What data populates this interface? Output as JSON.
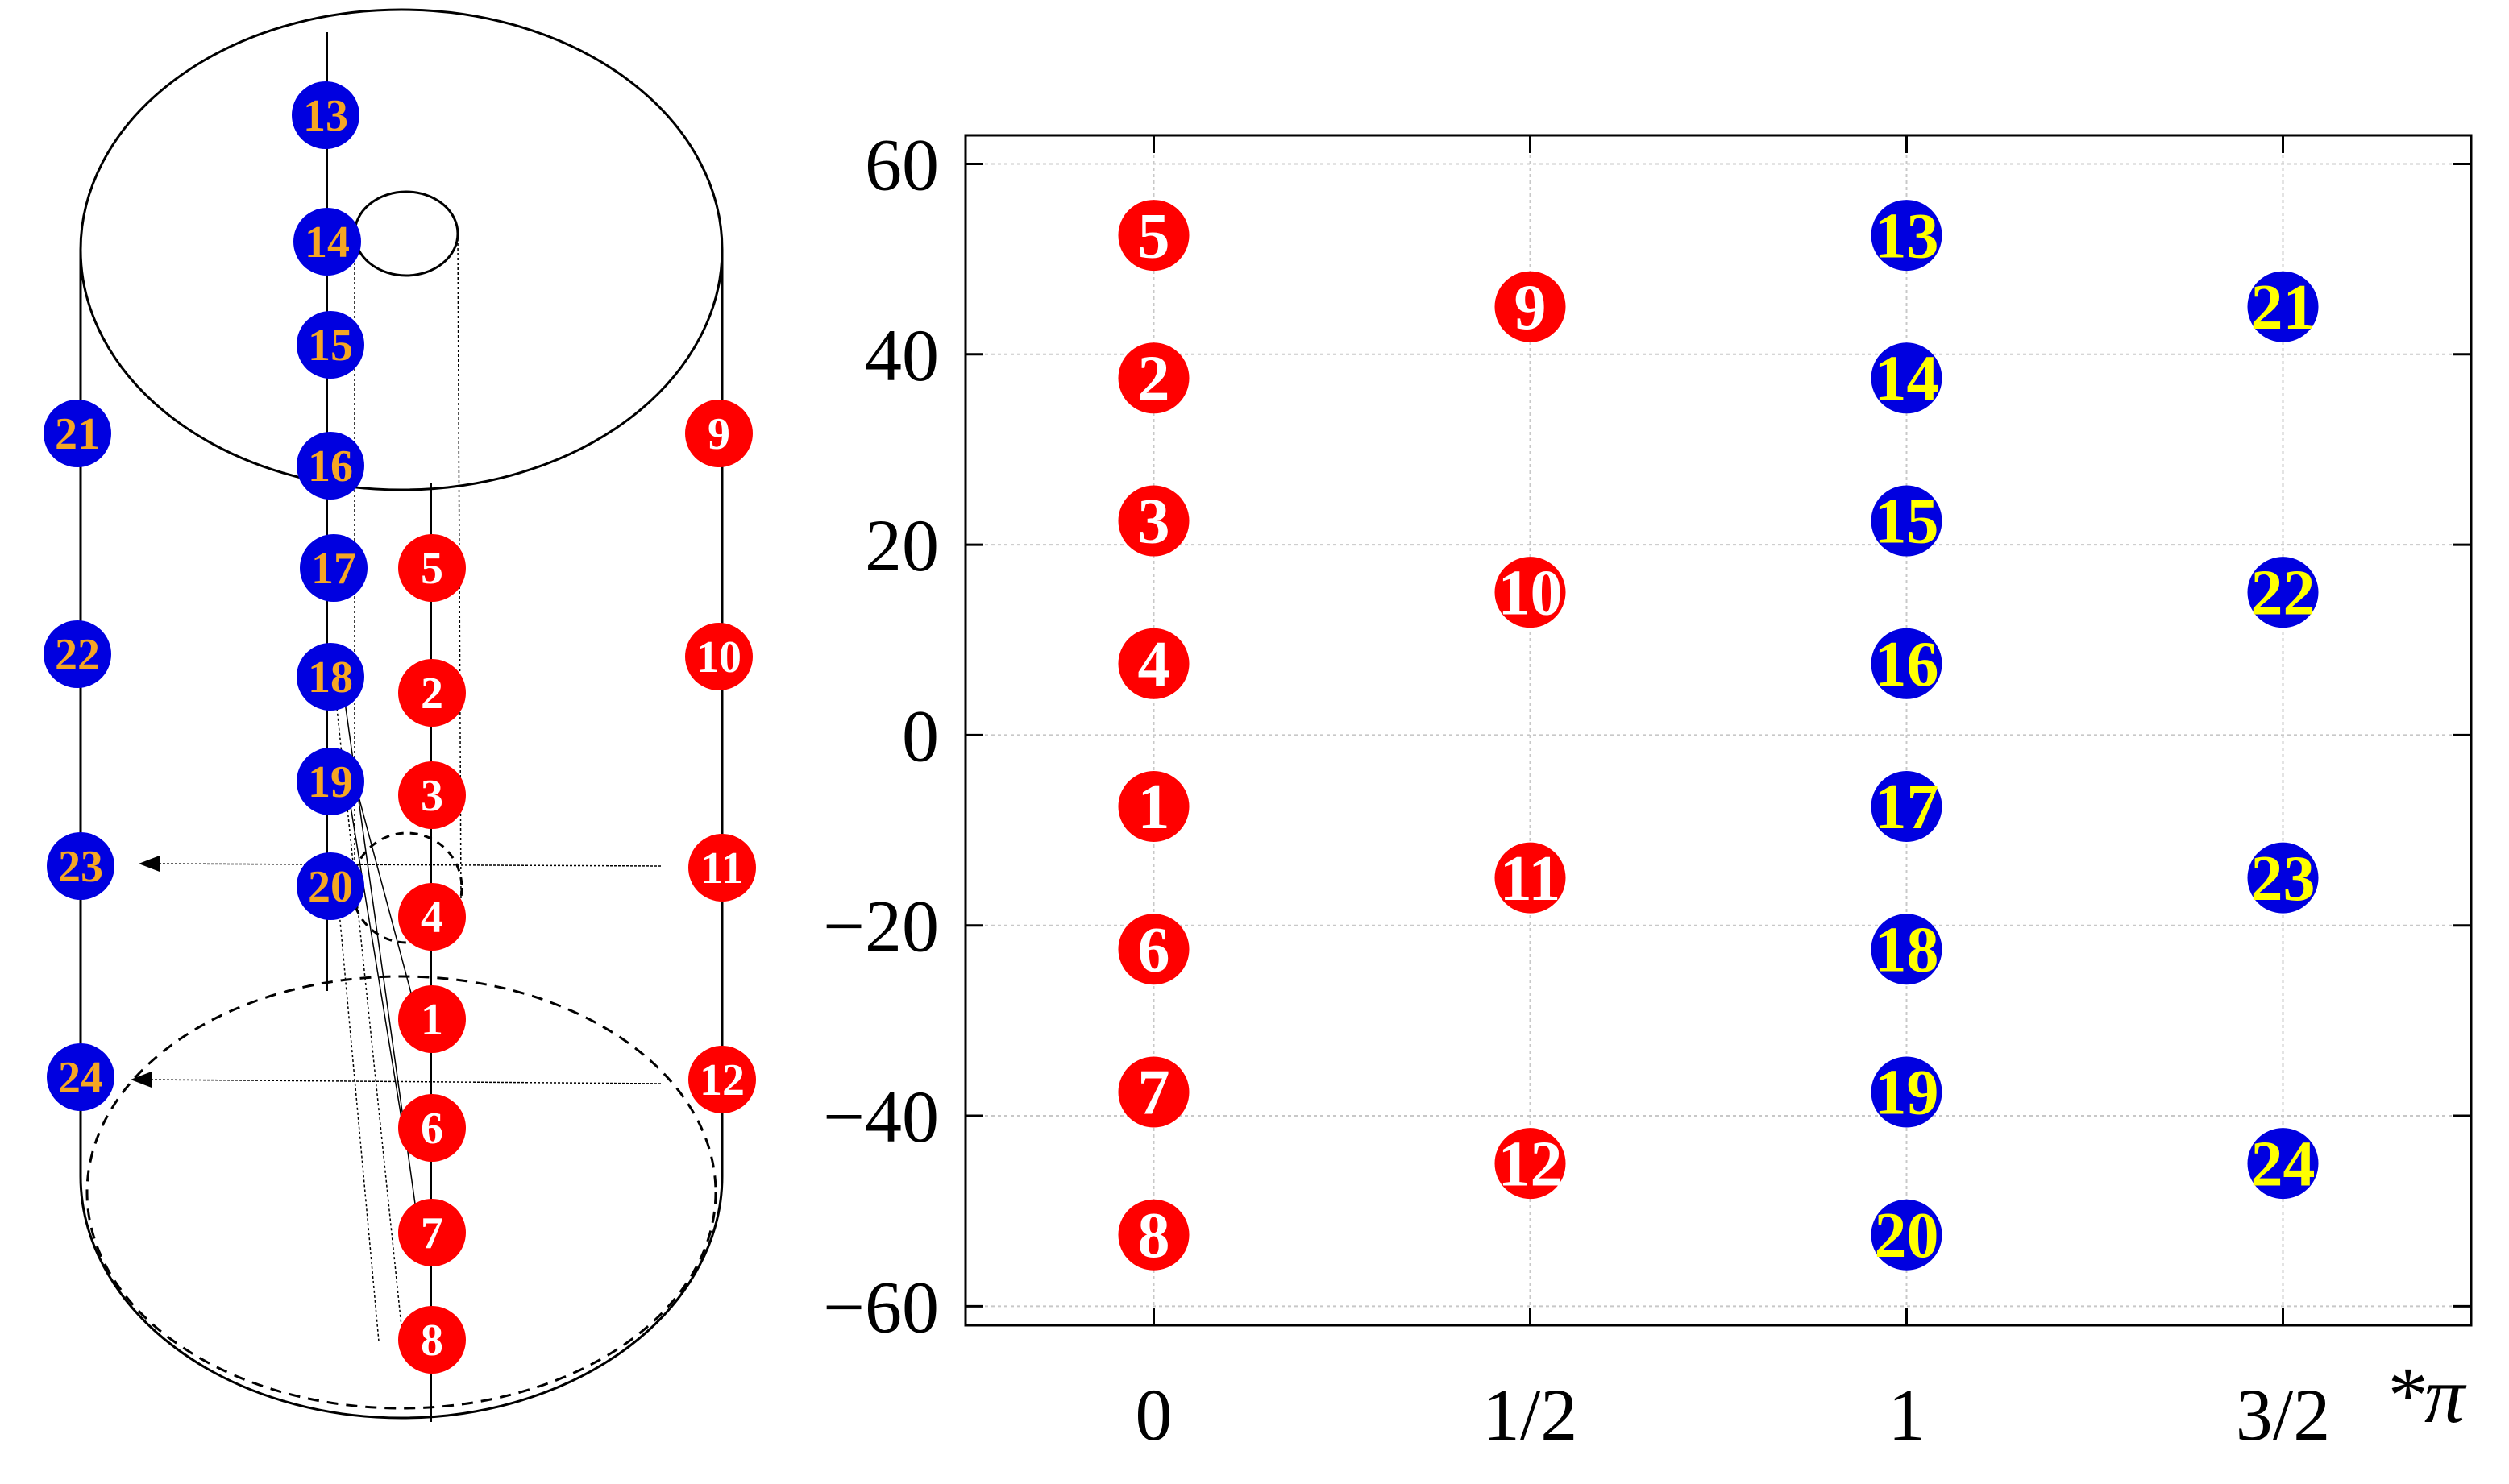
{
  "colors": {
    "red_marker": "#ff0000",
    "blue_marker": "#0000e0",
    "red_label": "#ffffff",
    "blue_label_left": "#f5a623",
    "blue_label_right": "#ffff00",
    "axis": "#000000",
    "grid": "#c8c8c8"
  },
  "left_diagram": {
    "markers": [
      {
        "id": "13",
        "group": "blue",
        "side": "left-face"
      },
      {
        "id": "14",
        "group": "blue",
        "side": "left-face"
      },
      {
        "id": "15",
        "group": "blue",
        "side": "left-face"
      },
      {
        "id": "16",
        "group": "blue",
        "side": "left-face"
      },
      {
        "id": "17",
        "group": "blue",
        "side": "left-face"
      },
      {
        "id": "18",
        "group": "blue",
        "side": "left-face"
      },
      {
        "id": "19",
        "group": "blue",
        "side": "left-face"
      },
      {
        "id": "20",
        "group": "blue",
        "side": "left-face"
      },
      {
        "id": "21",
        "group": "blue",
        "side": "left-edge"
      },
      {
        "id": "22",
        "group": "blue",
        "side": "left-edge"
      },
      {
        "id": "23",
        "group": "blue",
        "side": "left-edge"
      },
      {
        "id": "24",
        "group": "blue",
        "side": "left-edge"
      },
      {
        "id": "5",
        "group": "red",
        "side": "center"
      },
      {
        "id": "2",
        "group": "red",
        "side": "center"
      },
      {
        "id": "3",
        "group": "red",
        "side": "center"
      },
      {
        "id": "4",
        "group": "red",
        "side": "center"
      },
      {
        "id": "1",
        "group": "red",
        "side": "center"
      },
      {
        "id": "6",
        "group": "red",
        "side": "center"
      },
      {
        "id": "7",
        "group": "red",
        "side": "center"
      },
      {
        "id": "8",
        "group": "red",
        "side": "center"
      },
      {
        "id": "9",
        "group": "red",
        "side": "right-edge"
      },
      {
        "id": "10",
        "group": "red",
        "side": "right-edge"
      },
      {
        "id": "11",
        "group": "red",
        "side": "right-edge"
      },
      {
        "id": "12",
        "group": "red",
        "side": "right-edge"
      }
    ]
  },
  "chart_data": {
    "type": "scatter",
    "x_unit_label": "*π",
    "xlim": [
      -0.25,
      1.75
    ],
    "ylim": [
      -62,
      63
    ],
    "grid": true,
    "xticks": [
      {
        "value": 0,
        "label": "0"
      },
      {
        "value": 0.5,
        "label": "1/2"
      },
      {
        "value": 1,
        "label": "1"
      },
      {
        "value": 1.5,
        "label": "3/2"
      }
    ],
    "yticks": [
      {
        "value": 60,
        "label": "60"
      },
      {
        "value": 40,
        "label": "40"
      },
      {
        "value": 20,
        "label": "20"
      },
      {
        "value": 0,
        "label": "0"
      },
      {
        "value": -20,
        "label": "−20"
      },
      {
        "value": -40,
        "label": "−40"
      },
      {
        "value": -60,
        "label": "−60"
      }
    ],
    "points": [
      {
        "id": "5",
        "x": 0,
        "y": 52.5,
        "group": "red"
      },
      {
        "id": "2",
        "x": 0,
        "y": 37.5,
        "group": "red"
      },
      {
        "id": "3",
        "x": 0,
        "y": 22.5,
        "group": "red"
      },
      {
        "id": "4",
        "x": 0,
        "y": 7.5,
        "group": "red"
      },
      {
        "id": "1",
        "x": 0,
        "y": -7.5,
        "group": "red"
      },
      {
        "id": "6",
        "x": 0,
        "y": -22.5,
        "group": "red"
      },
      {
        "id": "7",
        "x": 0,
        "y": -37.5,
        "group": "red"
      },
      {
        "id": "8",
        "x": 0,
        "y": -52.5,
        "group": "red"
      },
      {
        "id": "9",
        "x": 0.5,
        "y": 45,
        "group": "red"
      },
      {
        "id": "10",
        "x": 0.5,
        "y": 15,
        "group": "red"
      },
      {
        "id": "11",
        "x": 0.5,
        "y": -15,
        "group": "red"
      },
      {
        "id": "12",
        "x": 0.5,
        "y": -45,
        "group": "red"
      },
      {
        "id": "13",
        "x": 1,
        "y": 52.5,
        "group": "blue"
      },
      {
        "id": "14",
        "x": 1,
        "y": 37.5,
        "group": "blue"
      },
      {
        "id": "15",
        "x": 1,
        "y": 22.5,
        "group": "blue"
      },
      {
        "id": "16",
        "x": 1,
        "y": 7.5,
        "group": "blue"
      },
      {
        "id": "17",
        "x": 1,
        "y": -7.5,
        "group": "blue"
      },
      {
        "id": "18",
        "x": 1,
        "y": -22.5,
        "group": "blue"
      },
      {
        "id": "19",
        "x": 1,
        "y": -37.5,
        "group": "blue"
      },
      {
        "id": "20",
        "x": 1,
        "y": -52.5,
        "group": "blue"
      },
      {
        "id": "21",
        "x": 1.5,
        "y": 45,
        "group": "blue"
      },
      {
        "id": "22",
        "x": 1.5,
        "y": 15,
        "group": "blue"
      },
      {
        "id": "23",
        "x": 1.5,
        "y": -15,
        "group": "blue"
      },
      {
        "id": "24",
        "x": 1.5,
        "y": -45,
        "group": "blue"
      }
    ]
  }
}
